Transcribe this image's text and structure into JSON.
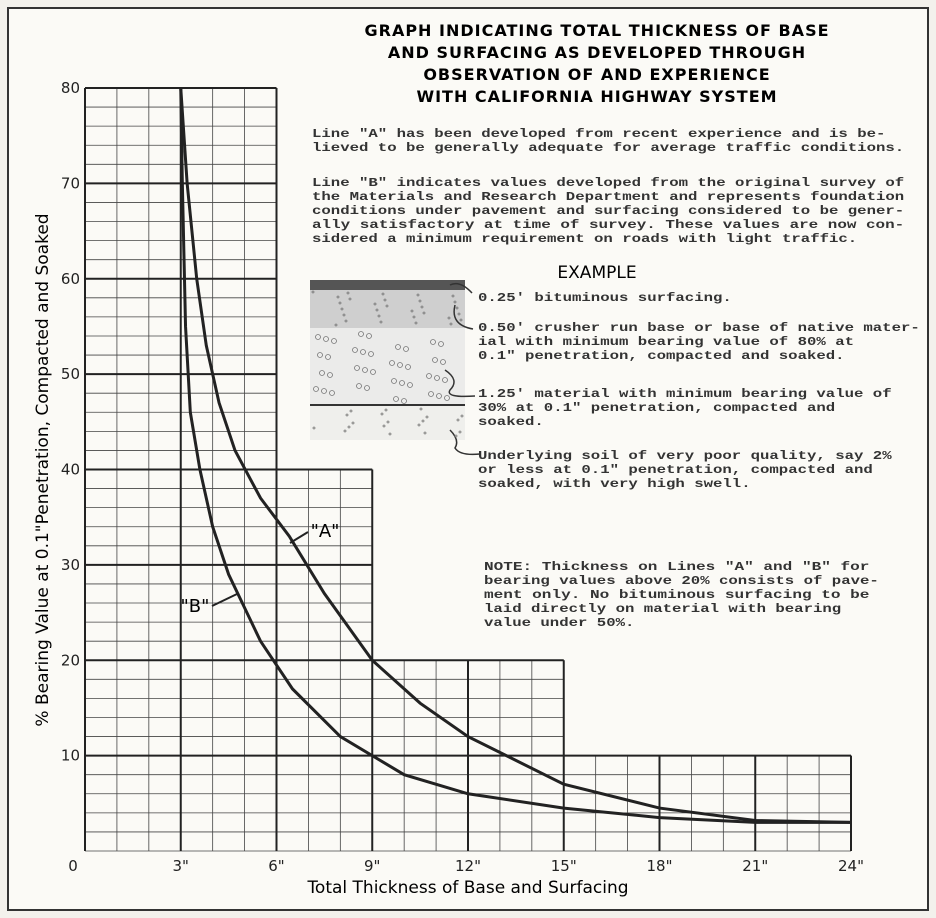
{
  "chart_data": {
    "type": "line",
    "title": [
      "GRAPH INDICATING TOTAL THICKNESS OF BASE",
      "AND SURFACING AS DEVELOPED THROUGH",
      "OBSERVATION OF AND EXPERIENCE",
      "WITH CALIFORNIA HIGHWAY SYSTEM"
    ],
    "paragraphs": [
      [
        "Line \"A\" has been developed from recent experience and is be-",
        "lieved to be generally adequate for average traffic conditions."
      ],
      [
        "Line \"B\" indicates values developed from the original survey of",
        "the Materials and Research Department and represents foundation",
        "conditions under pavement and surfacing considered to be gener-",
        "ally satisfactory at time of survey.  These values are now con-",
        "sidered a minimum requirement on roads with light traffic."
      ]
    ],
    "example": {
      "heading": "EXAMPLE",
      "items": [
        [
          "0.25' bituminous surfacing."
        ],
        [
          "0.50' crusher run base or base of native mater-",
          "ial with minimum bearing value of 80% at",
          "0.1\" penetration, compacted and soaked."
        ],
        [
          "1.25' material with minimum bearing value of",
          "30% at 0.1\" penetration, compacted and",
          "soaked."
        ],
        [
          "Underlying soil of very poor quality, say 2%",
          "or less at 0.1\" penetration, compacted and",
          "soaked, with very high swell."
        ]
      ]
    },
    "note": [
      "NOTE:  Thickness on Lines \"A\" and \"B\" for",
      "bearing values above 20% consists of pave-",
      "ment only.  No bituminous surfacing to be",
      "laid directly on material with bearing",
      "value under 50%."
    ],
    "x_label": "Total Thickness of Base and Surfacing",
    "y_label": "% Bearing Value at 0.1\"Penetration, Compacted and Soaked",
    "xlim": [
      0,
      24
    ],
    "ylim": [
      0,
      80
    ],
    "xticks": [
      0,
      {
        "value": 3,
        "label": "3\""
      },
      {
        "value": 6,
        "label": "6\""
      },
      {
        "value": 9,
        "label": "9\""
      },
      {
        "value": 12,
        "label": "12\""
      },
      {
        "value": 15,
        "label": "15\""
      },
      {
        "value": 18,
        "label": "18\""
      },
      {
        "value": 21,
        "label": "21\""
      },
      {
        "value": 24,
        "label": "24\""
      }
    ],
    "yticks": [
      10,
      20,
      30,
      40,
      50,
      60,
      70,
      80
    ],
    "grid": true,
    "minor_xstep": 1,
    "minor_ystep": 2,
    "grid_extent": [
      [
        6,
        80
      ],
      [
        9,
        40
      ],
      [
        15,
        20
      ],
      [
        24,
        10
      ]
    ],
    "series": [
      {
        "name": "\"A\"",
        "color": "#222222",
        "x": [
          3,
          3.2,
          3.5,
          3.8,
          4.2,
          4.7,
          5.5,
          6.4,
          7.5,
          9,
          10.5,
          12,
          15,
          18,
          21,
          24
        ],
        "values": [
          80,
          70,
          60,
          53,
          47,
          42,
          37,
          33,
          27,
          20,
          15.5,
          12,
          7,
          4.5,
          3.2,
          3
        ]
      },
      {
        "name": "\"B\"",
        "color": "#222222",
        "x": [
          3,
          3.05,
          3.15,
          3.3,
          3.6,
          4,
          4.5,
          5.5,
          6.5,
          8,
          10,
          12,
          15,
          18,
          21,
          24
        ],
        "values": [
          80,
          70,
          55,
          46,
          40,
          34,
          29,
          22,
          17,
          12,
          8,
          6,
          4.5,
          3.5,
          3,
          3
        ]
      }
    ]
  }
}
